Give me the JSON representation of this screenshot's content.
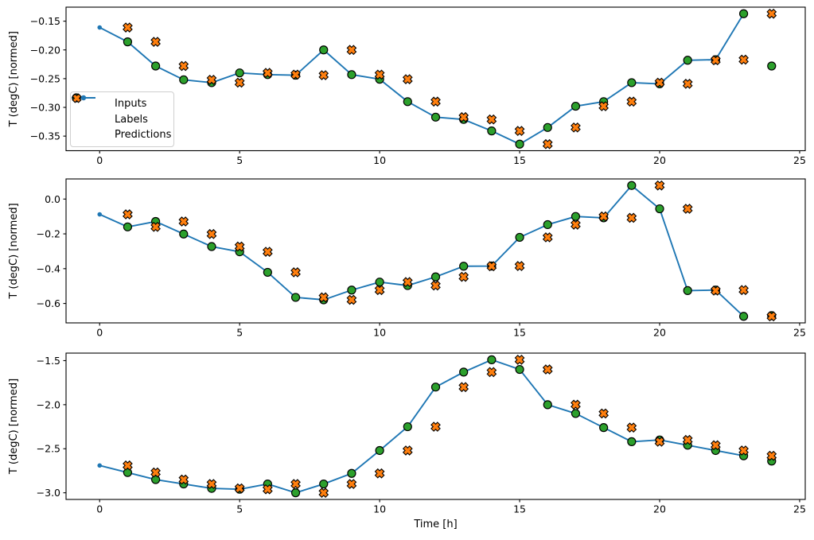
{
  "colors": {
    "inputs": "#1f77b4",
    "labels": "#2ca02c",
    "predictions": "#ff7f0e",
    "marker_edge": "#000000",
    "spine": "#000000",
    "legend_border": "#cfcfcf",
    "background": "#ffffff"
  },
  "legend": {
    "position": "center left of top subplot",
    "items": [
      {
        "label": "Inputs",
        "marker": "line-with-dot",
        "color": "#1f77b4"
      },
      {
        "label": "Labels",
        "marker": "filled-circle",
        "color": "#2ca02c"
      },
      {
        "label": "Predictions",
        "marker": "filled-x",
        "color": "#ff7f0e"
      }
    ]
  },
  "xlabel": "Time [h]",
  "ylabel": "T (degC) [normed]",
  "chart_data": [
    {
      "type": "line",
      "title": "",
      "ylabel": "T (degC) [normed]",
      "xlabel": "",
      "grid": false,
      "xlim": [
        -1.2,
        25.2
      ],
      "ylim": [
        -0.3754,
        -0.1256
      ],
      "xticks": {
        "values": [
          0,
          5,
          10,
          15,
          20,
          25
        ],
        "labels": [
          "0",
          "5",
          "10",
          "15",
          "20",
          "25"
        ]
      },
      "yticks": {
        "values": [
          -0.15,
          -0.2,
          -0.25,
          -0.3,
          -0.35
        ],
        "labels": [
          "−0.15",
          "−0.20",
          "−0.25",
          "−0.30",
          "−0.35"
        ]
      },
      "series": [
        {
          "name": "Inputs",
          "kind": "line",
          "marker": "dot",
          "color": "#1f77b4",
          "x": [
            0,
            1,
            2,
            3,
            4,
            5,
            6,
            7,
            8,
            9,
            10,
            11,
            12,
            13,
            14,
            15,
            16,
            17,
            18,
            19,
            20,
            21,
            22,
            23
          ],
          "y": [
            -0.161,
            -0.186,
            -0.228,
            -0.252,
            -0.257,
            -0.24,
            -0.243,
            -0.244,
            -0.2,
            -0.243,
            -0.251,
            -0.29,
            -0.317,
            -0.321,
            -0.341,
            -0.364,
            -0.335,
            -0.298,
            -0.29,
            -0.257,
            -0.259,
            -0.218,
            -0.217,
            -0.137
          ]
        },
        {
          "name": "Labels",
          "kind": "scatter",
          "marker": "circle",
          "color": "#2ca02c",
          "x": [
            1,
            2,
            3,
            4,
            5,
            6,
            7,
            8,
            9,
            10,
            11,
            12,
            13,
            14,
            15,
            16,
            17,
            18,
            19,
            20,
            21,
            22,
            23,
            24
          ],
          "y": [
            -0.186,
            -0.228,
            -0.252,
            -0.257,
            -0.24,
            -0.243,
            -0.244,
            -0.2,
            -0.243,
            -0.251,
            -0.29,
            -0.317,
            -0.321,
            -0.341,
            -0.364,
            -0.335,
            -0.298,
            -0.29,
            -0.257,
            -0.259,
            -0.218,
            -0.217,
            -0.137,
            -0.228
          ]
        },
        {
          "name": "Predictions",
          "kind": "scatter",
          "marker": "X",
          "color": "#ff7f0e",
          "x": [
            1,
            2,
            3,
            4,
            5,
            6,
            7,
            8,
            9,
            10,
            11,
            12,
            13,
            14,
            15,
            16,
            17,
            18,
            19,
            20,
            21,
            22,
            23,
            24
          ],
          "y": [
            -0.161,
            -0.186,
            -0.228,
            -0.252,
            -0.257,
            -0.24,
            -0.243,
            -0.244,
            -0.2,
            -0.243,
            -0.251,
            -0.29,
            -0.317,
            -0.321,
            -0.341,
            -0.364,
            -0.335,
            -0.298,
            -0.29,
            -0.257,
            -0.259,
            -0.218,
            -0.217,
            -0.137
          ]
        }
      ]
    },
    {
      "type": "line",
      "title": "",
      "ylabel": "T (degC) [normed]",
      "xlabel": "",
      "grid": false,
      "xlim": [
        -1.2,
        25.2
      ],
      "ylim": [
        -0.7116,
        0.1156
      ],
      "xticks": {
        "values": [
          0,
          5,
          10,
          15,
          20,
          25
        ],
        "labels": [
          "0",
          "5",
          "10",
          "15",
          "20",
          "25"
        ]
      },
      "yticks": {
        "values": [
          0.0,
          -0.2,
          -0.4,
          -0.6
        ],
        "labels": [
          "0.0",
          "−0.2",
          "−0.4",
          "−0.6"
        ]
      },
      "series": [
        {
          "name": "Inputs",
          "kind": "line",
          "marker": "dot",
          "color": "#1f77b4",
          "x": [
            0,
            1,
            2,
            3,
            4,
            5,
            6,
            7,
            8,
            9,
            10,
            11,
            12,
            13,
            14,
            15,
            16,
            17,
            18,
            19,
            20,
            21,
            22,
            23
          ],
          "y": [
            -0.088,
            -0.16,
            -0.129,
            -0.201,
            -0.273,
            -0.303,
            -0.421,
            -0.565,
            -0.579,
            -0.523,
            -0.477,
            -0.497,
            -0.447,
            -0.386,
            -0.385,
            -0.22,
            -0.147,
            -0.1,
            -0.108,
            0.078,
            -0.056,
            -0.526,
            -0.523,
            -0.674
          ]
        },
        {
          "name": "Labels",
          "kind": "scatter",
          "marker": "circle",
          "color": "#2ca02c",
          "x": [
            1,
            2,
            3,
            4,
            5,
            6,
            7,
            8,
            9,
            10,
            11,
            12,
            13,
            14,
            15,
            16,
            17,
            18,
            19,
            20,
            21,
            22,
            23,
            24
          ],
          "y": [
            -0.16,
            -0.129,
            -0.201,
            -0.273,
            -0.303,
            -0.421,
            -0.565,
            -0.579,
            -0.523,
            -0.477,
            -0.497,
            -0.447,
            -0.386,
            -0.385,
            -0.22,
            -0.147,
            -0.1,
            -0.108,
            0.078,
            -0.056,
            -0.526,
            -0.523,
            -0.674,
            -0.67
          ]
        },
        {
          "name": "Predictions",
          "kind": "scatter",
          "marker": "X",
          "color": "#ff7f0e",
          "x": [
            1,
            2,
            3,
            4,
            5,
            6,
            7,
            8,
            9,
            10,
            11,
            12,
            13,
            14,
            15,
            16,
            17,
            18,
            19,
            20,
            21,
            22,
            23,
            24
          ],
          "y": [
            -0.088,
            -0.16,
            -0.129,
            -0.201,
            -0.273,
            -0.303,
            -0.421,
            -0.565,
            -0.579,
            -0.523,
            -0.477,
            -0.497,
            -0.447,
            -0.386,
            -0.385,
            -0.22,
            -0.147,
            -0.1,
            -0.108,
            0.078,
            -0.056,
            -0.526,
            -0.523,
            -0.674
          ]
        }
      ]
    },
    {
      "type": "line",
      "title": "",
      "ylabel": "T (degC) [normed]",
      "xlabel": "Time [h]",
      "grid": false,
      "xlim": [
        -1.2,
        25.2
      ],
      "ylim": [
        -3.0755,
        -1.4145
      ],
      "xticks": {
        "values": [
          0,
          5,
          10,
          15,
          20,
          25
        ],
        "labels": [
          "0",
          "5",
          "10",
          "15",
          "20",
          "25"
        ]
      },
      "yticks": {
        "values": [
          -1.5,
          -2.0,
          -2.5,
          -3.0
        ],
        "labels": [
          "−1.5",
          "−2.0",
          "−2.5",
          "−3.0"
        ]
      },
      "series": [
        {
          "name": "Inputs",
          "kind": "line",
          "marker": "dot",
          "color": "#1f77b4",
          "x": [
            0,
            1,
            2,
            3,
            4,
            5,
            6,
            7,
            8,
            9,
            10,
            11,
            12,
            13,
            14,
            15,
            16,
            17,
            18,
            19,
            20,
            21,
            22,
            23
          ],
          "y": [
            -2.69,
            -2.77,
            -2.85,
            -2.9,
            -2.95,
            -2.96,
            -2.9,
            -3.0,
            -2.9,
            -2.78,
            -2.52,
            -2.25,
            -1.8,
            -1.63,
            -1.49,
            -1.6,
            -2.0,
            -2.1,
            -2.26,
            -2.42,
            -2.4,
            -2.46,
            -2.52,
            -2.58
          ]
        },
        {
          "name": "Labels",
          "kind": "scatter",
          "marker": "circle",
          "color": "#2ca02c",
          "x": [
            1,
            2,
            3,
            4,
            5,
            6,
            7,
            8,
            9,
            10,
            11,
            12,
            13,
            14,
            15,
            16,
            17,
            18,
            19,
            20,
            21,
            22,
            23,
            24
          ],
          "y": [
            -2.77,
            -2.85,
            -2.9,
            -2.95,
            -2.96,
            -2.9,
            -3.0,
            -2.9,
            -2.78,
            -2.52,
            -2.25,
            -1.8,
            -1.63,
            -1.49,
            -1.6,
            -2.0,
            -2.1,
            -2.26,
            -2.42,
            -2.4,
            -2.46,
            -2.52,
            -2.58,
            -2.64
          ]
        },
        {
          "name": "Predictions",
          "kind": "scatter",
          "marker": "X",
          "color": "#ff7f0e",
          "x": [
            1,
            2,
            3,
            4,
            5,
            6,
            7,
            8,
            9,
            10,
            11,
            12,
            13,
            14,
            15,
            16,
            17,
            18,
            19,
            20,
            21,
            22,
            23,
            24
          ],
          "y": [
            -2.69,
            -2.77,
            -2.85,
            -2.9,
            -2.95,
            -2.96,
            -2.9,
            -3.0,
            -2.9,
            -2.78,
            -2.52,
            -2.25,
            -1.8,
            -1.63,
            -1.49,
            -1.6,
            -2.0,
            -2.1,
            -2.26,
            -2.42,
            -2.4,
            -2.46,
            -2.52,
            -2.58
          ]
        }
      ]
    }
  ]
}
